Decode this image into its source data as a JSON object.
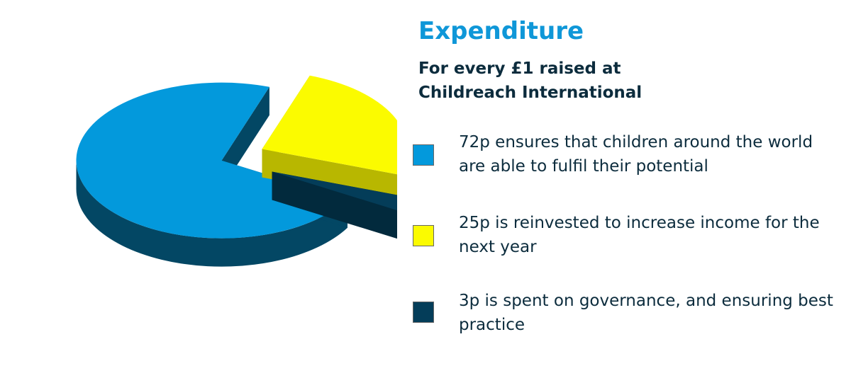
{
  "chart_data": {
    "type": "pie",
    "title": "Expenditure",
    "subtitle": "For every £1 raised at Childreach International",
    "slices": [
      {
        "label": "72p ensures that children around the world are able to fulfil their potential",
        "value": 72,
        "color": "#0399dc",
        "side_color": "#034764"
      },
      {
        "label": "25p is reinvested to increase income for the next year",
        "value": 25,
        "color": "#fbfb00",
        "side_color": "#b8b700"
      },
      {
        "label": "3p is spent on governance, and ensuring best practice",
        "value": 3,
        "color": "#043d59",
        "side_color": "#022a3d"
      }
    ],
    "legend_position": "right",
    "three_d": true,
    "exploded": true
  }
}
